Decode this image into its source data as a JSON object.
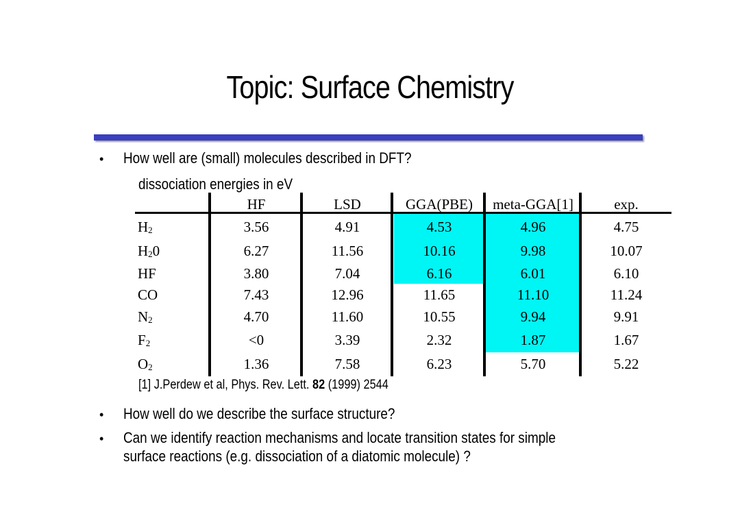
{
  "title": "Topic: Surface Chemistry",
  "accent_color": "#3a3fc0",
  "highlight_color": "#00f5f5",
  "bullets": {
    "q1": "How well are (small) molecules described in DFT?",
    "subtitle": "dissociation energies in eV",
    "q2": "How well do we describe the surface structure?",
    "q3_line1": "Can we identify reaction mechanisms and locate transition states for simple",
    "q3_line2": "surface reactions (e.g. dissociation of a diatomic molecule) ?"
  },
  "bullet_glyph": "•",
  "table": {
    "headers": [
      "HF",
      "LSD",
      "GGA(PBE)",
      "meta-GGA[1]",
      "exp."
    ],
    "rows": [
      {
        "label": "H",
        "label_sub": "2",
        "label_tail": "",
        "values": [
          "3.56",
          "4.91",
          "4.53",
          "4.96",
          "4.75"
        ]
      },
      {
        "label": "H",
        "label_sub": "2",
        "label_tail": "0",
        "values": [
          "6.27",
          "11.56",
          "10.16",
          "9.98",
          "10.07"
        ]
      },
      {
        "label": "HF",
        "label_sub": "",
        "label_tail": "",
        "values": [
          "3.80",
          "7.04",
          "6.16",
          "6.01",
          "6.10"
        ]
      },
      {
        "label": "CO",
        "label_sub": "",
        "label_tail": "",
        "values": [
          "7.43",
          "12.96",
          "11.65",
          "11.10",
          "11.24"
        ]
      },
      {
        "label": "N",
        "label_sub": "2",
        "label_tail": "",
        "values": [
          "4.70",
          "11.60",
          "10.55",
          "9.94",
          "9.91"
        ]
      },
      {
        "label": "F",
        "label_sub": "2",
        "label_tail": "",
        "values": [
          "<0",
          "3.39",
          "2.32",
          "1.87",
          "1.67"
        ]
      },
      {
        "label": "O",
        "label_sub": "2",
        "label_tail": "",
        "values": [
          "1.36",
          "7.58",
          "6.23",
          "5.70",
          "5.22"
        ]
      }
    ]
  },
  "reference": {
    "prefix": "[1]  J.Perdew et al, Phys. Rev. Lett. ",
    "volume": "82",
    "suffix": " (1999) 2544"
  }
}
